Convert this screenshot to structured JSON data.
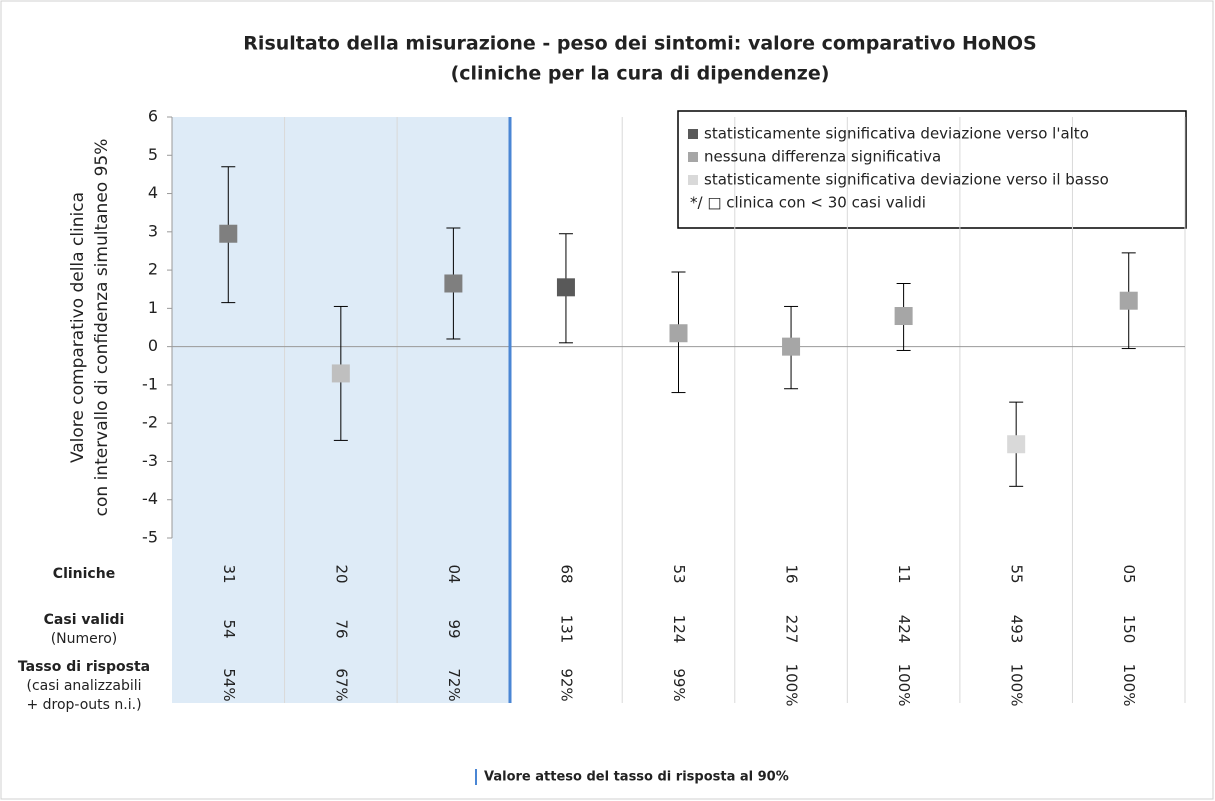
{
  "chart_data": {
    "type": "errorbar",
    "title": [
      "Risultato della misurazione - peso dei sintomi: valore comparativo HoNOS",
      "(cliniche per la cura di dipendenze)"
    ],
    "y_label": [
      "Valore comparativo della clinica",
      "con intervallo di confidenza simultaneo 95%"
    ],
    "categories": [
      "31",
      "20",
      "04",
      "68",
      "53",
      "16",
      "11",
      "55",
      "05"
    ],
    "values": [
      2.95,
      -0.7,
      1.65,
      1.55,
      0.35,
      0.0,
      0.8,
      -2.55,
      1.2
    ],
    "lower": [
      1.15,
      -2.45,
      0.2,
      0.1,
      -1.2,
      -1.1,
      -0.1,
      -3.65,
      -0.05
    ],
    "upper": [
      4.7,
      1.05,
      3.1,
      2.95,
      1.95,
      1.05,
      1.65,
      -1.45,
      2.45
    ],
    "colors": [
      "#7f7f7f",
      "#bfbfbf",
      "#7f7f7f",
      "#595959",
      "#a6a6a6",
      "#a6a6a6",
      "#a6a6a6",
      "#d9d9d9",
      "#a6a6a6"
    ],
    "ylim": [
      -5,
      6
    ],
    "yticks": [
      -5,
      -4,
      -3,
      -2,
      -1,
      0,
      1,
      2,
      3,
      4,
      5,
      6
    ],
    "grid": true,
    "legend": [
      {
        "label": "statisticamente significativa deviazione verso l'alto",
        "color": "#595959"
      },
      {
        "label": "nessuna differenza significativa",
        "color": "#a6a6a6"
      },
      {
        "label": "statisticamente significativa deviazione verso il basso",
        "color": "#d9d9d9"
      },
      {
        "label": "*/ □ clinica con < 30 casi validi"
      }
    ],
    "table": [
      {
        "label": [
          "Cliniche"
        ],
        "values": [
          "31",
          "20",
          "04",
          "68",
          "53",
          "16",
          "11",
          "55",
          "05"
        ]
      },
      {
        "label": [
          "Casi validi",
          "(Numero)"
        ],
        "values": [
          54,
          76,
          99,
          131,
          124,
          227,
          424,
          493,
          150
        ]
      },
      {
        "label": [
          "Tasso di risposta",
          "(casi analizzabili",
          "+ drop-outs n.i.)"
        ],
        "values": [
          "54%",
          "67%",
          "72%",
          "92%",
          "99%",
          "100%",
          "100%",
          "100%",
          "100%"
        ]
      }
    ],
    "footnote": "Valore atteso del tasso di risposta al 90%"
  }
}
